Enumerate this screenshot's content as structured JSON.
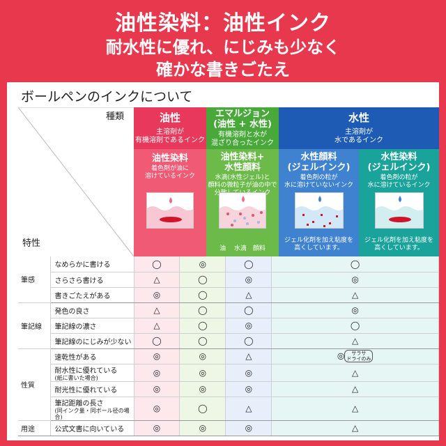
{
  "header": {
    "line1": "油性染料：油性インク",
    "line2": "耐水性に優れ、にじみも少なく",
    "line3": "確かな書きごたえ"
  },
  "panel": {
    "title": "ボールペンのインクについて",
    "corner_top": "種類",
    "corner_bottom": "特性"
  },
  "categories": [
    {
      "title": "油性",
      "sub": "主溶剤が\n有機溶剤であるインク",
      "color": "#e8385c"
    },
    {
      "title": "エマルジョン\n(油性 + 水性)",
      "sub": "有機溶剤と水が\n混ざり合ったインク",
      "color": "#48a83a"
    },
    {
      "title": "水性",
      "sub": "主溶剤が\n水であるインク",
      "color": "#1e5bb5"
    }
  ],
  "subtypes": [
    {
      "title": "油性染料",
      "desc": "着色剤が油に\n溶けているインク",
      "foot": "",
      "color": "#f05a74"
    },
    {
      "title": "油性染料+\n水性顔料",
      "desc": "水滴(水性ジェル)と\n顔料の微粒子が油の中で\n分散しているインク",
      "foot": "油　 水滴　顔料",
      "color": "#6cbb4a"
    },
    {
      "title": "水性顔料\n(ジェルインク)",
      "desc": "着色剤の粒が\n水に溶けていないインク",
      "foot": "ジェル化剤を加え粘度を\n高くしています。",
      "color": "#3f82cf"
    },
    {
      "title": "水性染料\n(ジェルインク)",
      "desc": "着色剤の粒が\n水に溶けているインク",
      "foot": "ジェル化剤を加え粘度を\n高くしています。",
      "color": "#1aa39a"
    }
  ],
  "groups": [
    {
      "name": "筆感",
      "rows": [
        {
          "feature": "なめらかに書ける",
          "small": "",
          "marks": [
            "◯",
            "◎",
            "◯",
            "◯"
          ],
          "note": ""
        },
        {
          "feature": "さらさら書ける",
          "small": "",
          "marks": [
            "△",
            "◯",
            "◎",
            "◎"
          ],
          "note": ""
        },
        {
          "feature": "書きごたえがある",
          "small": "",
          "marks": [
            "◎",
            "◯",
            "△",
            "△"
          ],
          "note": ""
        }
      ]
    },
    {
      "name": "筆記線",
      "rows": [
        {
          "feature": "発色の良さ",
          "small": "",
          "marks": [
            "△",
            "◯",
            "◯",
            "◎"
          ],
          "note": ""
        },
        {
          "feature": "筆記線の濃さ",
          "small": "",
          "marks": [
            "△",
            "◯",
            "◎",
            "◯"
          ],
          "note": ""
        },
        {
          "feature": "筆記線のにじみが少ない",
          "small": "",
          "marks": [
            "◯",
            "◯",
            "◯",
            "△"
          ],
          "note": ""
        }
      ]
    },
    {
      "name": "性質",
      "rows": [
        {
          "feature": "速乾性がある",
          "small": "",
          "marks": [
            "◎",
            "◎",
            "△",
            "◎"
          ],
          "note": "サラサ\nドライのみ"
        },
        {
          "feature": "耐水性に優れている",
          "small": "(紙に書いた場合)",
          "marks": [
            "◎",
            "◎",
            "◎",
            "△"
          ],
          "note": ""
        },
        {
          "feature": "耐光性に優れている",
          "small": "",
          "marks": [
            "◎",
            "◎",
            "◎",
            "△"
          ],
          "note": ""
        },
        {
          "feature": "筆記距離の長さ",
          "small": "(同インク量・同ボール径の場合)",
          "marks": [
            "◎",
            "◯",
            "△",
            "△"
          ],
          "note": ""
        }
      ]
    },
    {
      "name": "用途",
      "rows": [
        {
          "feature": "公式文書に向いている",
          "small": "",
          "marks": [
            "◎",
            "◎",
            "◎",
            "△"
          ],
          "note": ""
        }
      ]
    }
  ]
}
